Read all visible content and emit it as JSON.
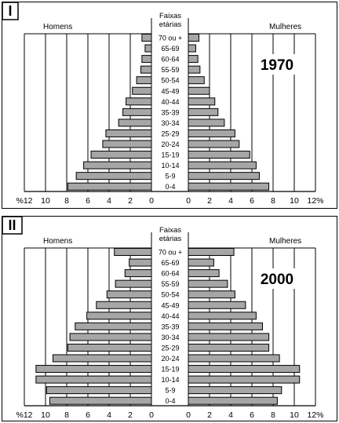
{
  "chart_data": [
    {
      "type": "bar",
      "panel_label": "I",
      "year_label": "1970",
      "left_header": "Homens",
      "right_header": "Mulheres",
      "center_header": [
        "Faixas",
        "etárias"
      ],
      "categories": [
        "70 ou +",
        "65-69",
        "60-64",
        "55-59",
        "50-54",
        "45-49",
        "40-44",
        "35-39",
        "30-34",
        "25-29",
        "20-24",
        "15-19",
        "10-14",
        "5-9",
        "0-4"
      ],
      "series": [
        {
          "name": "Homens",
          "values": [
            0.9,
            0.6,
            0.9,
            1.0,
            1.4,
            1.8,
            2.4,
            2.7,
            3.1,
            4.3,
            4.6,
            5.7,
            6.4,
            7.1,
            7.9
          ]
        },
        {
          "name": "Mulheres",
          "values": [
            1.0,
            0.7,
            0.9,
            1.1,
            1.5,
            2.0,
            2.5,
            2.8,
            3.4,
            4.4,
            4.8,
            5.8,
            6.4,
            6.7,
            7.6
          ]
        }
      ],
      "left_ticks": [
        "%12",
        "10",
        "8",
        "6",
        "4",
        "2",
        "0"
      ],
      "right_ticks": [
        "0",
        "2",
        "4",
        "6",
        "8",
        "10",
        "12%"
      ],
      "xlim": [
        0,
        12
      ],
      "grid": true
    },
    {
      "type": "bar",
      "panel_label": "II",
      "year_label": "2000",
      "left_header": "Homens",
      "right_header": "Mulheres",
      "center_header": [
        "Faixas",
        "etárias"
      ],
      "categories": [
        "70 ou +",
        "65-69",
        "60-64",
        "55-59",
        "50-54",
        "45-49",
        "40-44",
        "35-39",
        "30-34",
        "25-29",
        "20-24",
        "15-19",
        "10-14",
        "5-9",
        "0-4"
      ],
      "series": [
        {
          "name": "Homens",
          "values": [
            3.5,
            2.1,
            2.5,
            3.4,
            4.2,
            5.2,
            6.1,
            7.2,
            7.7,
            7.9,
            9.3,
            10.9,
            10.9,
            9.9,
            9.6
          ]
        },
        {
          "name": "Mulheres",
          "values": [
            4.3,
            2.4,
            2.9,
            3.7,
            4.4,
            5.4,
            6.4,
            7.0,
            7.6,
            7.6,
            8.6,
            10.5,
            10.5,
            8.8,
            8.4
          ]
        }
      ],
      "left_ticks": [
        "%12",
        "10",
        "8",
        "6",
        "4",
        "2",
        "0"
      ],
      "right_ticks": [
        "0",
        "2",
        "4",
        "6",
        "8",
        "10",
        "12%"
      ],
      "xlim": [
        0,
        12
      ],
      "grid": true
    }
  ]
}
